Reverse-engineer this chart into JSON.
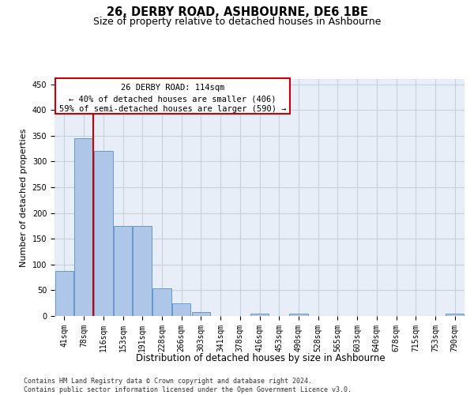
{
  "title": "26, DERBY ROAD, ASHBOURNE, DE6 1BE",
  "subtitle": "Size of property relative to detached houses in Ashbourne",
  "xlabel": "Distribution of detached houses by size in Ashbourne",
  "ylabel": "Number of detached properties",
  "categories": [
    "41sqm",
    "78sqm",
    "116sqm",
    "153sqm",
    "191sqm",
    "228sqm",
    "266sqm",
    "303sqm",
    "341sqm",
    "378sqm",
    "416sqm",
    "453sqm",
    "490sqm",
    "528sqm",
    "565sqm",
    "603sqm",
    "640sqm",
    "678sqm",
    "715sqm",
    "753sqm",
    "790sqm"
  ],
  "values": [
    88,
    345,
    320,
    175,
    175,
    53,
    25,
    8,
    0,
    0,
    5,
    0,
    5,
    0,
    0,
    0,
    0,
    0,
    0,
    0,
    5
  ],
  "bar_color": "#aec6e8",
  "bar_edge_color": "#6699cc",
  "ylim": [
    0,
    460
  ],
  "yticks": [
    0,
    50,
    100,
    150,
    200,
    250,
    300,
    350,
    400,
    450
  ],
  "annotation_line1": "26 DERBY ROAD: 114sqm",
  "annotation_line2": "← 40% of detached houses are smaller (406)",
  "annotation_line3": "59% of semi-detached houses are larger (590) →",
  "annotation_box_color": "#ffffff",
  "annotation_box_edge": "#cc0000",
  "vline_color": "#cc0000",
  "background_color": "#e8eef8",
  "grid_color": "#c8d0dc",
  "footer_text": "Contains HM Land Registry data © Crown copyright and database right 2024.\nContains public sector information licensed under the Open Government Licence v3.0.",
  "title_fontsize": 10.5,
  "subtitle_fontsize": 9,
  "xlabel_fontsize": 8.5,
  "ylabel_fontsize": 8,
  "tick_fontsize": 7,
  "annotation_fontsize": 7.5,
  "footer_fontsize": 6
}
